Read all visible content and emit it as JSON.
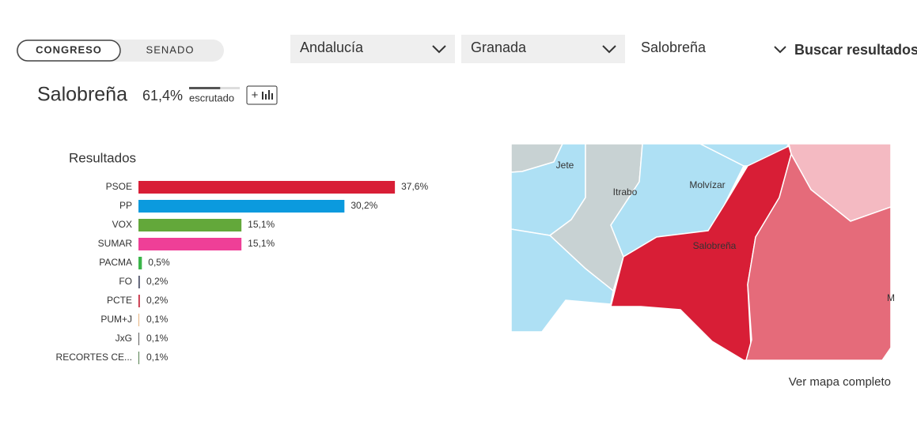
{
  "tabs": [
    "CONGRESO",
    "SENADO"
  ],
  "filters": [
    "Andalucía",
    "Granada",
    "Salobreña"
  ],
  "search": "Buscar resultados",
  "place": {
    "name": "Salobreña",
    "scrutinized": 61.4,
    "scrutinized_label": "61,4%",
    "scrutinized_text": "escrutado",
    "button": "+"
  },
  "chart_data": {
    "type": "bar",
    "orientation": "horizontal",
    "title": "Resultados",
    "categories": [
      "PSOE",
      "PP",
      "VOX",
      "SUMAR",
      "PACMA",
      "FO",
      "PCTE",
      "PUM+J",
      "JxG",
      "RECORTES CE..."
    ],
    "values": [
      37.6,
      30.2,
      15.1,
      15.1,
      0.5,
      0.2,
      0.2,
      0.1,
      0.1,
      0.1
    ],
    "value_labels": [
      "37,6%",
      "30,2%",
      "15,1%",
      "15,1%",
      "0,5%",
      "0,2%",
      "0,2%",
      "0,1%",
      "0,1%",
      "0,1%"
    ],
    "colors": [
      "#d81e36",
      "#0b9ade",
      "#63a83a",
      "#ef3f97",
      "#3bb54a",
      "#4a4f66",
      "#c4243a",
      "#e3a76c",
      "#444444",
      "#3a6b35"
    ]
  },
  "map": {
    "labels": [
      "Jete",
      "Itrabo",
      "Molvízar",
      "Salobreña",
      "M"
    ],
    "link": "Ver mapa completo"
  }
}
